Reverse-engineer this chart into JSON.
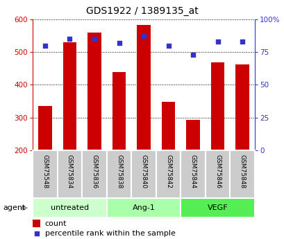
{
  "title": "GDS1922 / 1389135_at",
  "samples": [
    "GSM75548",
    "GSM75834",
    "GSM75836",
    "GSM75838",
    "GSM75840",
    "GSM75842",
    "GSM75844",
    "GSM75846",
    "GSM75848"
  ],
  "counts": [
    335,
    530,
    560,
    440,
    582,
    348,
    293,
    468,
    463
  ],
  "percentiles": [
    80,
    85,
    85,
    82,
    87,
    80,
    73,
    83,
    83
  ],
  "ylim_left": [
    200,
    600
  ],
  "ylim_right": [
    0,
    100
  ],
  "yticks_left": [
    200,
    300,
    400,
    500,
    600
  ],
  "yticks_right": [
    0,
    25,
    50,
    75,
    100
  ],
  "yticklabels_right": [
    "0",
    "25",
    "50",
    "75",
    "100%"
  ],
  "bar_color": "#cc0000",
  "scatter_color": "#3333cc",
  "groups": [
    {
      "label": "untreated",
      "indices": [
        0,
        1,
        2
      ],
      "color": "#ccffcc"
    },
    {
      "label": "Ang-1",
      "indices": [
        3,
        4,
        5
      ],
      "color": "#aaffaa"
    },
    {
      "label": "VEGF",
      "indices": [
        6,
        7,
        8
      ],
      "color": "#55ee55"
    }
  ],
  "agent_label": "agent",
  "legend_count_label": "count",
  "legend_percentile_label": "percentile rank within the sample",
  "bar_width": 0.55,
  "background_color": "#ffffff",
  "plot_bg_color": "#ffffff",
  "tick_cell_color": "#cccccc",
  "bar_bottom": 200
}
